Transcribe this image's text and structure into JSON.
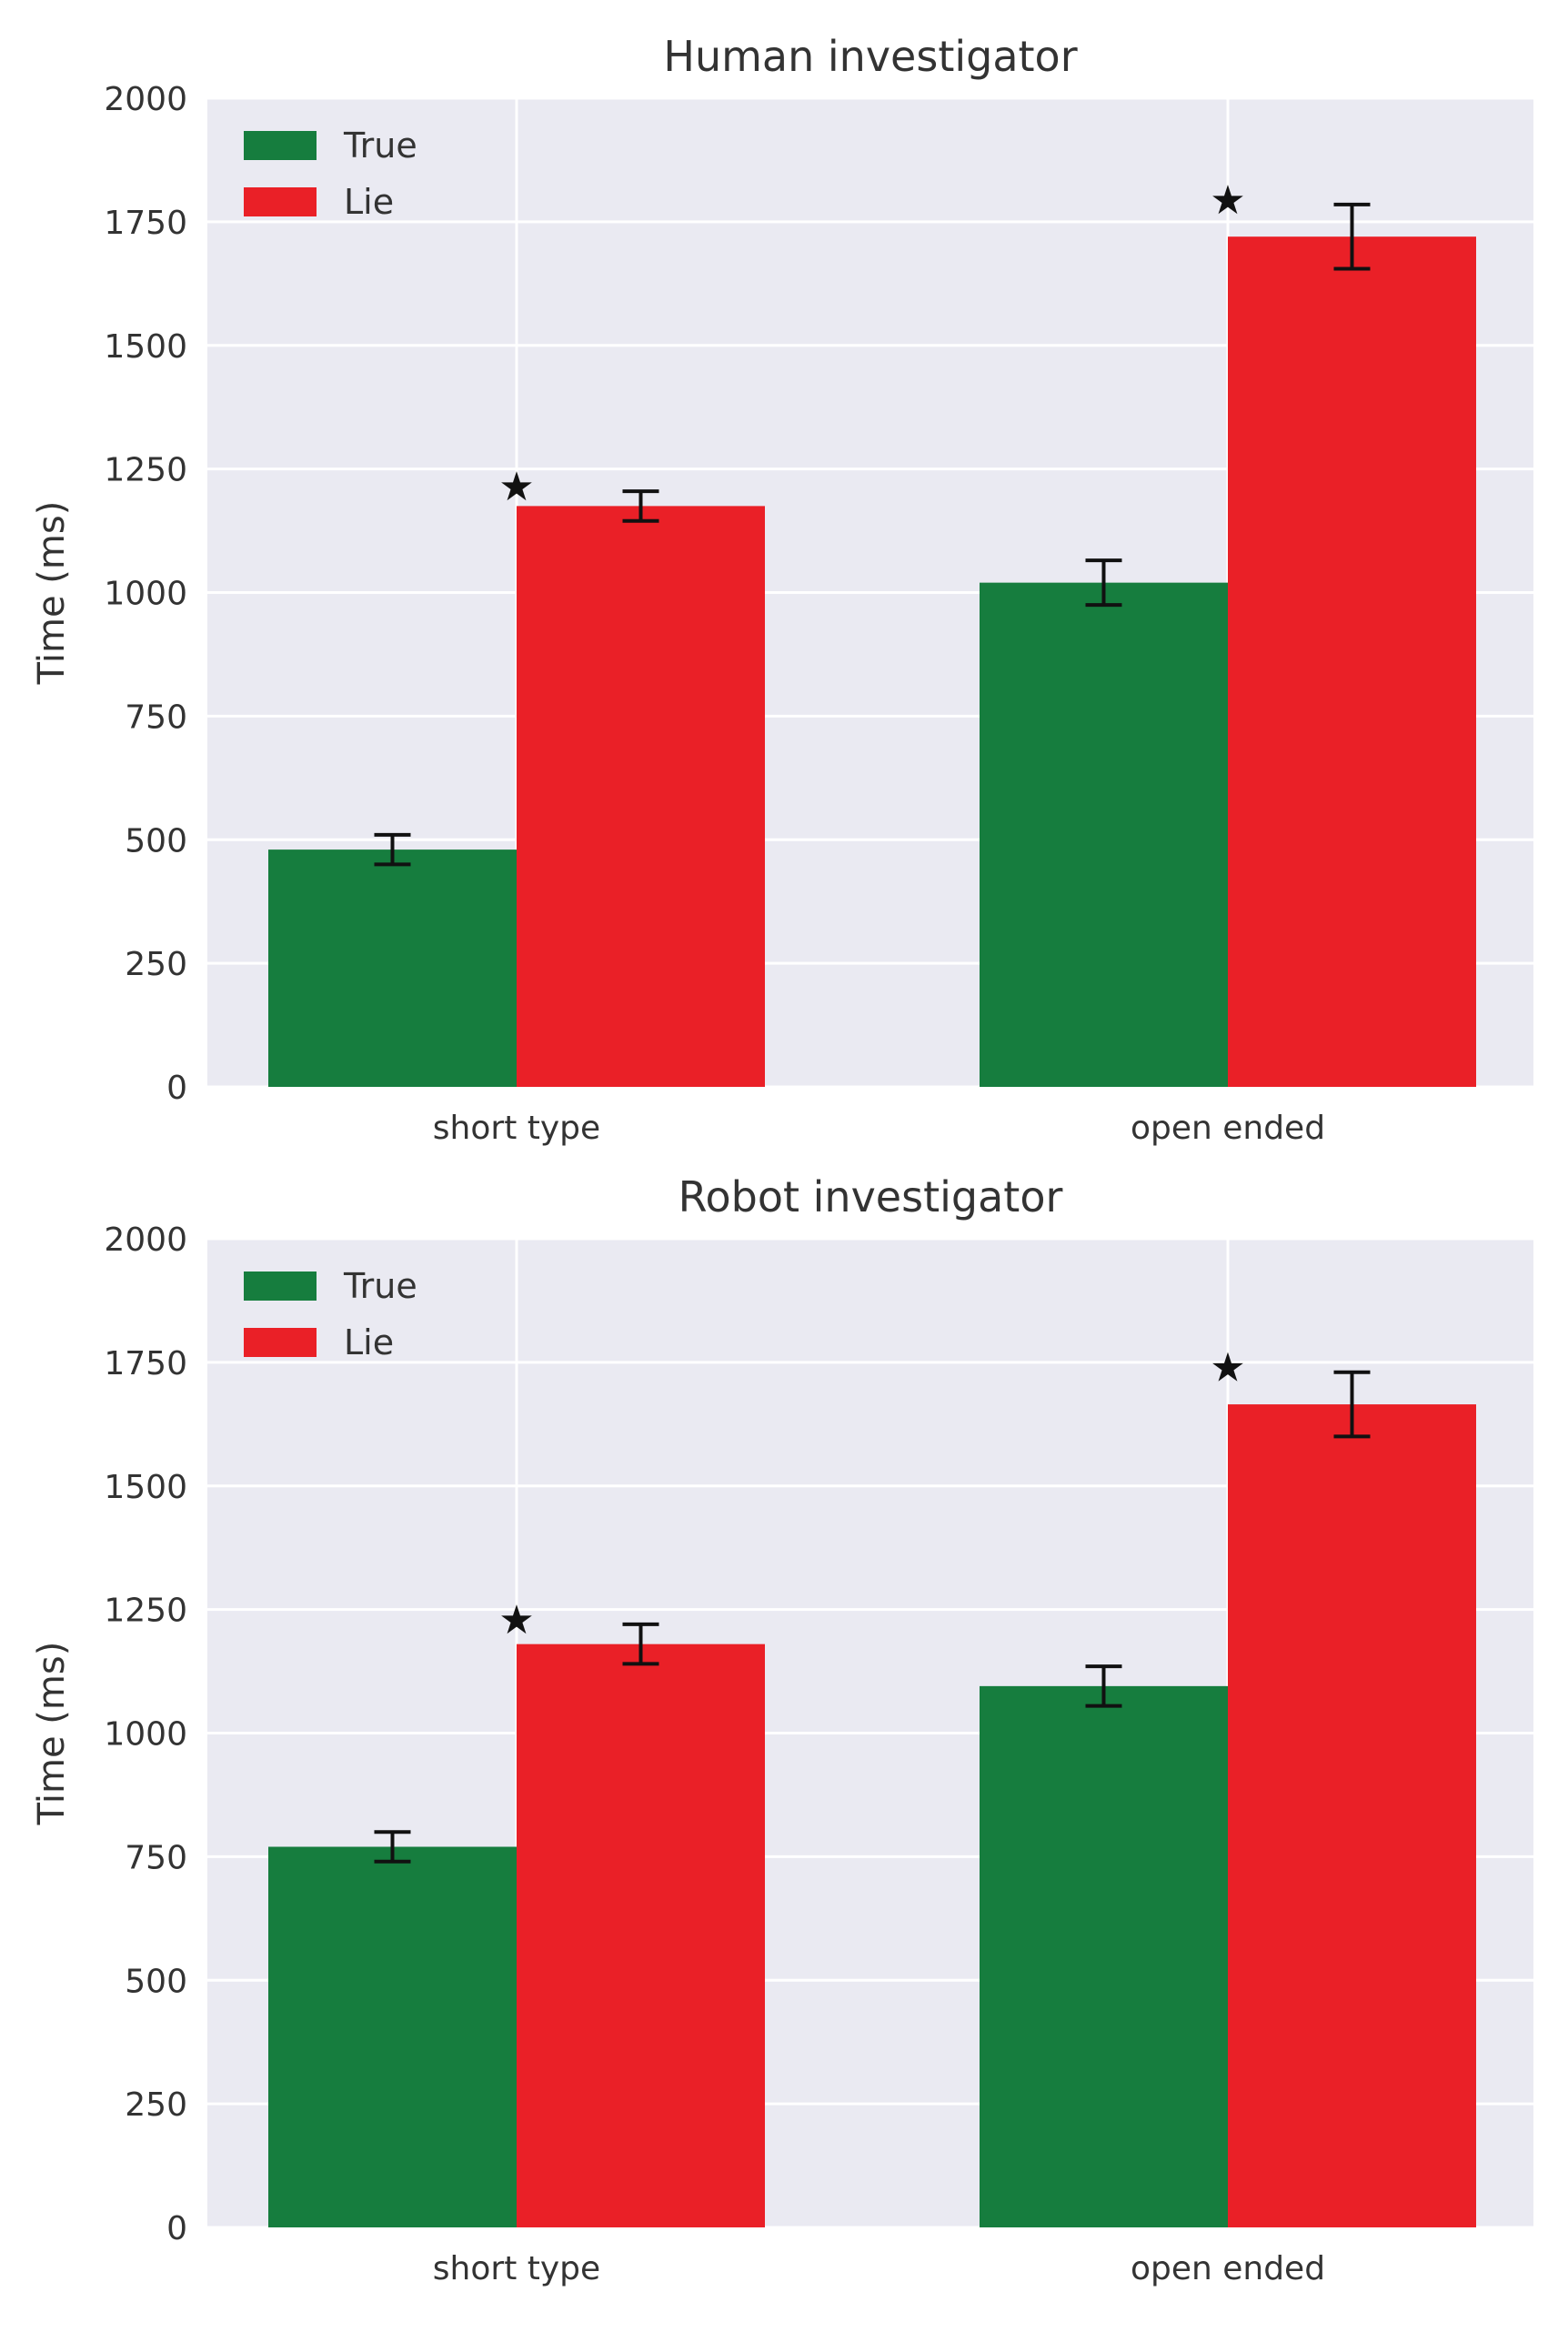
{
  "chart_data": [
    {
      "type": "bar",
      "title": "Human investigator",
      "xlabel": "",
      "ylabel": "Time (ms)",
      "ylim": [
        0,
        2000
      ],
      "yticks": [
        0,
        250,
        500,
        750,
        1000,
        1250,
        1500,
        1750,
        2000
      ],
      "grid": true,
      "legend_position": "top-left",
      "categories": [
        "short type",
        "open ended"
      ],
      "series": [
        {
          "name": "True",
          "color": "#167d3e",
          "values": [
            480,
            1020
          ],
          "errors": [
            30,
            45
          ]
        },
        {
          "name": "Lie",
          "color": "#ea2027",
          "values": [
            1175,
            1720
          ],
          "errors": [
            30,
            65
          ]
        }
      ],
      "significance_marker": "★",
      "significant": [
        true,
        true
      ]
    },
    {
      "type": "bar",
      "title": "Robot investigator",
      "xlabel": "",
      "ylabel": "Time (ms)",
      "ylim": [
        0,
        2000
      ],
      "yticks": [
        0,
        250,
        500,
        750,
        1000,
        1250,
        1500,
        1750,
        2000
      ],
      "grid": true,
      "legend_position": "top-left",
      "categories": [
        "short type",
        "open ended"
      ],
      "series": [
        {
          "name": "True",
          "color": "#167d3e",
          "values": [
            770,
            1095
          ],
          "errors": [
            30,
            40
          ]
        },
        {
          "name": "Lie",
          "color": "#ea2027",
          "values": [
            1180,
            1665
          ],
          "errors": [
            40,
            65
          ]
        }
      ],
      "significance_marker": "★",
      "significant": [
        true,
        true
      ]
    }
  ],
  "style": {
    "plot_background": "#eaeaf2",
    "grid_color": "#ffffff",
    "text_color": "#333333",
    "errorbar_color": "#111111"
  }
}
